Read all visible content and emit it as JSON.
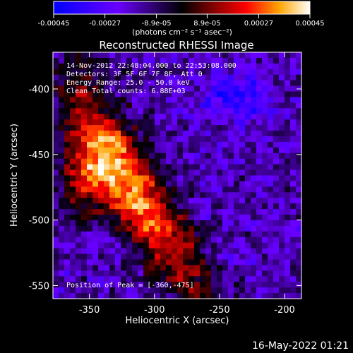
{
  "chart_data": {
    "type": "heatmap",
    "title": "Reconstructed RHESSI Image",
    "xlabel": "Heliocentric X (arcsec)",
    "ylabel": "Heliocentric Y (arcsec)",
    "xlim": [
      -378,
      -187
    ],
    "ylim": [
      -560,
      -372
    ],
    "x_ticks": [
      "-350",
      "-300",
      "-250",
      "-200"
    ],
    "x_tick_values": [
      -350,
      -300,
      -250,
      -200
    ],
    "y_ticks": [
      "-400",
      "-450",
      "-500",
      "-550"
    ],
    "y_tick_values": [
      -400,
      -450,
      -500,
      -550
    ],
    "colorbar": {
      "ticks": [
        "-0.00045",
        "-0.00027",
        "-8.9e-05",
        "8.9e-05",
        "0.00027",
        "0.00045"
      ],
      "tick_values": [
        -0.00045,
        -0.00027,
        -8.9e-05,
        8.9e-05,
        0.00027,
        0.00045
      ],
      "range": [
        -0.00045,
        0.00045
      ],
      "units_label": "(photons cm⁻² s⁻¹ asec⁻²)",
      "colors": [
        "#0000ff",
        "#6a00ff",
        "#000000",
        "#800000",
        "#ff0000",
        "#ffa500",
        "#ffffff"
      ]
    },
    "annotations": {
      "time_range": "14-Nov-2012 22:48:04.000 to 22:53:08.000",
      "detectors": "Detectors: 3F 5F 6F 7F 8F, Att 0",
      "energy": "Energy Range: 25.0 - 50.0 keV",
      "method": "Clean     Total counts: 6.88E+03",
      "peak": "Position of Peak = [-360,-475]"
    },
    "peak_position": [
      -360,
      -475
    ],
    "grid": false
  },
  "footer": {
    "timestamp": "16-May-2022 01:21"
  }
}
